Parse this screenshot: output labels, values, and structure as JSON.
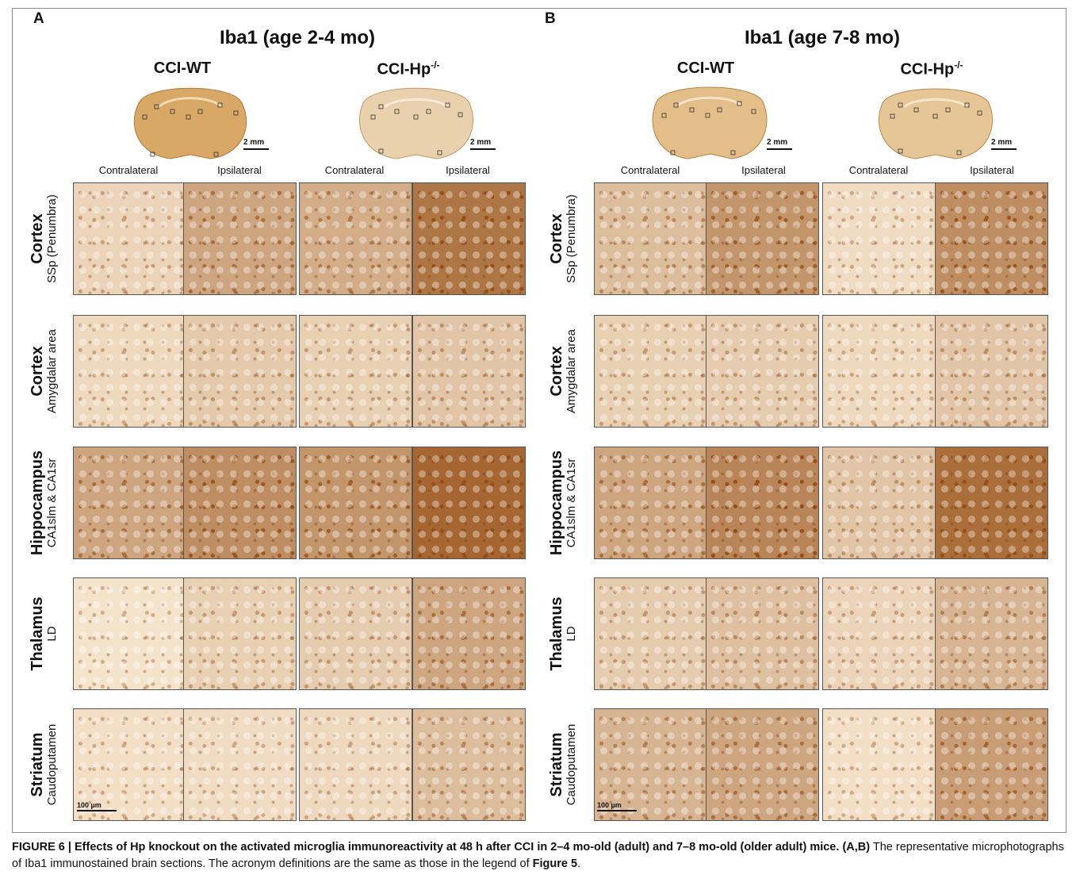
{
  "panels": [
    {
      "label": "A",
      "title": "Iba1 (age 2-4 mo)",
      "groups": [
        {
          "name": "CCI-WT",
          "sup": ""
        },
        {
          "name": "CCI-Hp",
          "sup": "-/-"
        }
      ],
      "scale_label": "2 mm",
      "sides": [
        "Contralateral",
        "Ipsilateral",
        "Contralateral",
        "Ipsilateral"
      ],
      "micro_scale": "100 µm"
    },
    {
      "label": "B",
      "title": "Iba1 (age 7-8 mo)",
      "groups": [
        {
          "name": "CCI-WT",
          "sup": ""
        },
        {
          "name": "CCI-Hp",
          "sup": "-/-"
        }
      ],
      "scale_label": "2 mm",
      "sides": [
        "Contralateral",
        "Ipsilateral",
        "Contralateral",
        "Ipsilateral"
      ],
      "micro_scale": "100 µm"
    }
  ],
  "rows": [
    {
      "region": "Cortex",
      "sub": "SSp (Penumbra)"
    },
    {
      "region": "Cortex",
      "sub": "Amygdalar area"
    },
    {
      "region": "Hippocampus",
      "sub": "CA1slm & CA1sr"
    },
    {
      "region": "Thalamus",
      "sub": "LD"
    },
    {
      "region": "Striatum",
      "sub": "Caudoputamen"
    }
  ],
  "stain_levels": {
    "A": [
      [
        0.15,
        0.45,
        0.4,
        0.75
      ],
      [
        0.12,
        0.22,
        0.18,
        0.25
      ],
      [
        0.45,
        0.6,
        0.55,
        0.85
      ],
      [
        0.05,
        0.18,
        0.2,
        0.45
      ],
      [
        0.08,
        0.1,
        0.12,
        0.3
      ]
    ],
    "B": [
      [
        0.3,
        0.55,
        0.1,
        0.6
      ],
      [
        0.18,
        0.2,
        0.12,
        0.25
      ],
      [
        0.45,
        0.65,
        0.25,
        0.8
      ],
      [
        0.2,
        0.28,
        0.15,
        0.35
      ],
      [
        0.35,
        0.45,
        0.08,
        0.5
      ]
    ]
  },
  "caption": {
    "lead": "FIGURE 6 | Effects of Hp knockout on the activated microglia immunoreactivity at 48 h after CCI in 2–4 mo-old (adult) and 7–8 mo-old (older adult) mice.",
    "refs": "(A,B)",
    "body": " The representative microphotographs of Iba1 immunostained brain sections. The acronym definitions are the same as those in the legend of ",
    "fig_ref": "Figure 5",
    "end": "."
  }
}
